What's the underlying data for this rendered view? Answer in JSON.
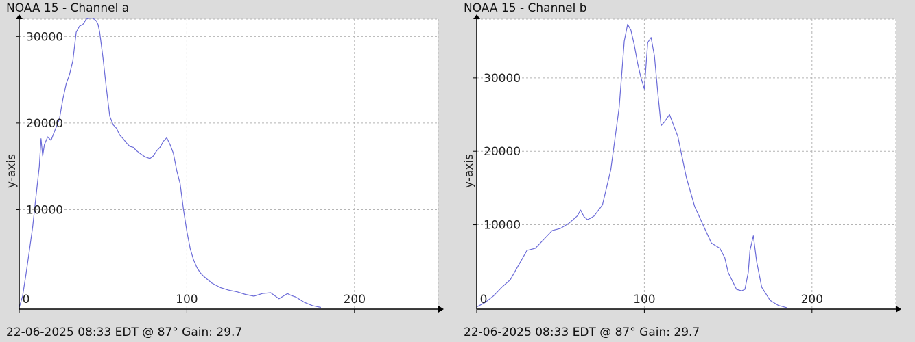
{
  "colors": {
    "background": "#dcdcdc",
    "plot_bg": "#ffffff",
    "line": "#6b6bd8",
    "grid": "#b4b4b4",
    "axis": "#000000"
  },
  "chart_data": [
    {
      "type": "line",
      "title": "NOAA 15 - Channel a",
      "footer": "22-06-2025 08:33 EDT @ 87° Gain: 29.7",
      "ylabel": "y-axis",
      "xlabel": "",
      "xlim": [
        0,
        250
      ],
      "ylim": [
        -1500,
        32000
      ],
      "xticks": [
        0,
        100,
        200
      ],
      "yticks": [
        10000,
        20000,
        30000
      ],
      "grid": true,
      "series": [
        {
          "x": [
            0,
            2,
            4,
            6,
            8,
            10,
            12,
            13,
            14,
            15,
            17,
            19,
            21,
            24,
            26,
            28,
            30,
            32,
            34,
            36,
            38,
            40,
            42,
            44,
            46,
            47,
            48,
            50,
            52,
            54,
            56,
            58,
            60,
            62,
            64,
            66,
            68,
            70,
            72,
            75,
            78,
            80,
            82,
            84,
            86,
            88,
            90,
            92,
            94,
            96,
            98,
            100,
            102,
            104,
            106,
            108,
            110,
            115,
            120,
            125,
            130,
            135,
            140,
            145,
            150,
            155,
            160,
            162,
            165,
            170,
            175,
            180
          ],
          "y": [
            -1300,
            0,
            2500,
            5200,
            8000,
            11500,
            15000,
            18200,
            16200,
            17500,
            18400,
            18000,
            19000,
            20500,
            22700,
            24500,
            25600,
            27200,
            30500,
            31200,
            31400,
            32000,
            32100,
            32100,
            31800,
            31400,
            30500,
            27500,
            24000,
            20800,
            19800,
            19400,
            18600,
            18200,
            17700,
            17300,
            17200,
            16800,
            16500,
            16100,
            15900,
            16200,
            16800,
            17200,
            17900,
            18300,
            17500,
            16500,
            14500,
            13000,
            10000,
            7500,
            5500,
            4200,
            3300,
            2700,
            2300,
            1500,
            1000,
            700,
            500,
            200,
            0,
            300,
            400,
            -300,
            300,
            100,
            -100,
            -700,
            -1100,
            -1300
          ]
        }
      ]
    },
    {
      "type": "line",
      "title": "NOAA 15 - Channel b",
      "footer": "22-06-2025 08:33 EDT @ 87° Gain: 29.7",
      "ylabel": "y-axis",
      "xlabel": "",
      "xlim": [
        0,
        250
      ],
      "ylim": [
        -1500,
        38000
      ],
      "xticks": [
        0,
        100,
        200
      ],
      "yticks": [
        10000,
        20000,
        30000
      ],
      "grid": true,
      "series": [
        {
          "x": [
            0,
            5,
            10,
            15,
            20,
            25,
            30,
            35,
            40,
            45,
            50,
            55,
            60,
            62,
            64,
            66,
            68,
            70,
            75,
            80,
            85,
            88,
            90,
            92,
            94,
            96,
            98,
            100,
            102,
            104,
            106,
            108,
            110,
            112,
            115,
            120,
            125,
            130,
            135,
            140,
            145,
            148,
            150,
            155,
            158,
            160,
            162,
            163,
            165,
            167,
            170,
            175,
            180,
            185
          ],
          "y": [
            -1200,
            -600,
            300,
            1500,
            2500,
            4500,
            6500,
            6800,
            8000,
            9200,
            9500,
            10200,
            11200,
            12000,
            11100,
            10700,
            10900,
            11200,
            12700,
            17500,
            26000,
            35000,
            37300,
            36500,
            34500,
            32000,
            30000,
            28500,
            34800,
            35500,
            33000,
            28000,
            23500,
            24000,
            25000,
            22000,
            16500,
            12500,
            10000,
            7500,
            6800,
            5500,
            3500,
            1200,
            1000,
            1200,
            3500,
            6500,
            8500,
            5000,
            1500,
            -300,
            -1000,
            -1300
          ]
        }
      ]
    }
  ]
}
